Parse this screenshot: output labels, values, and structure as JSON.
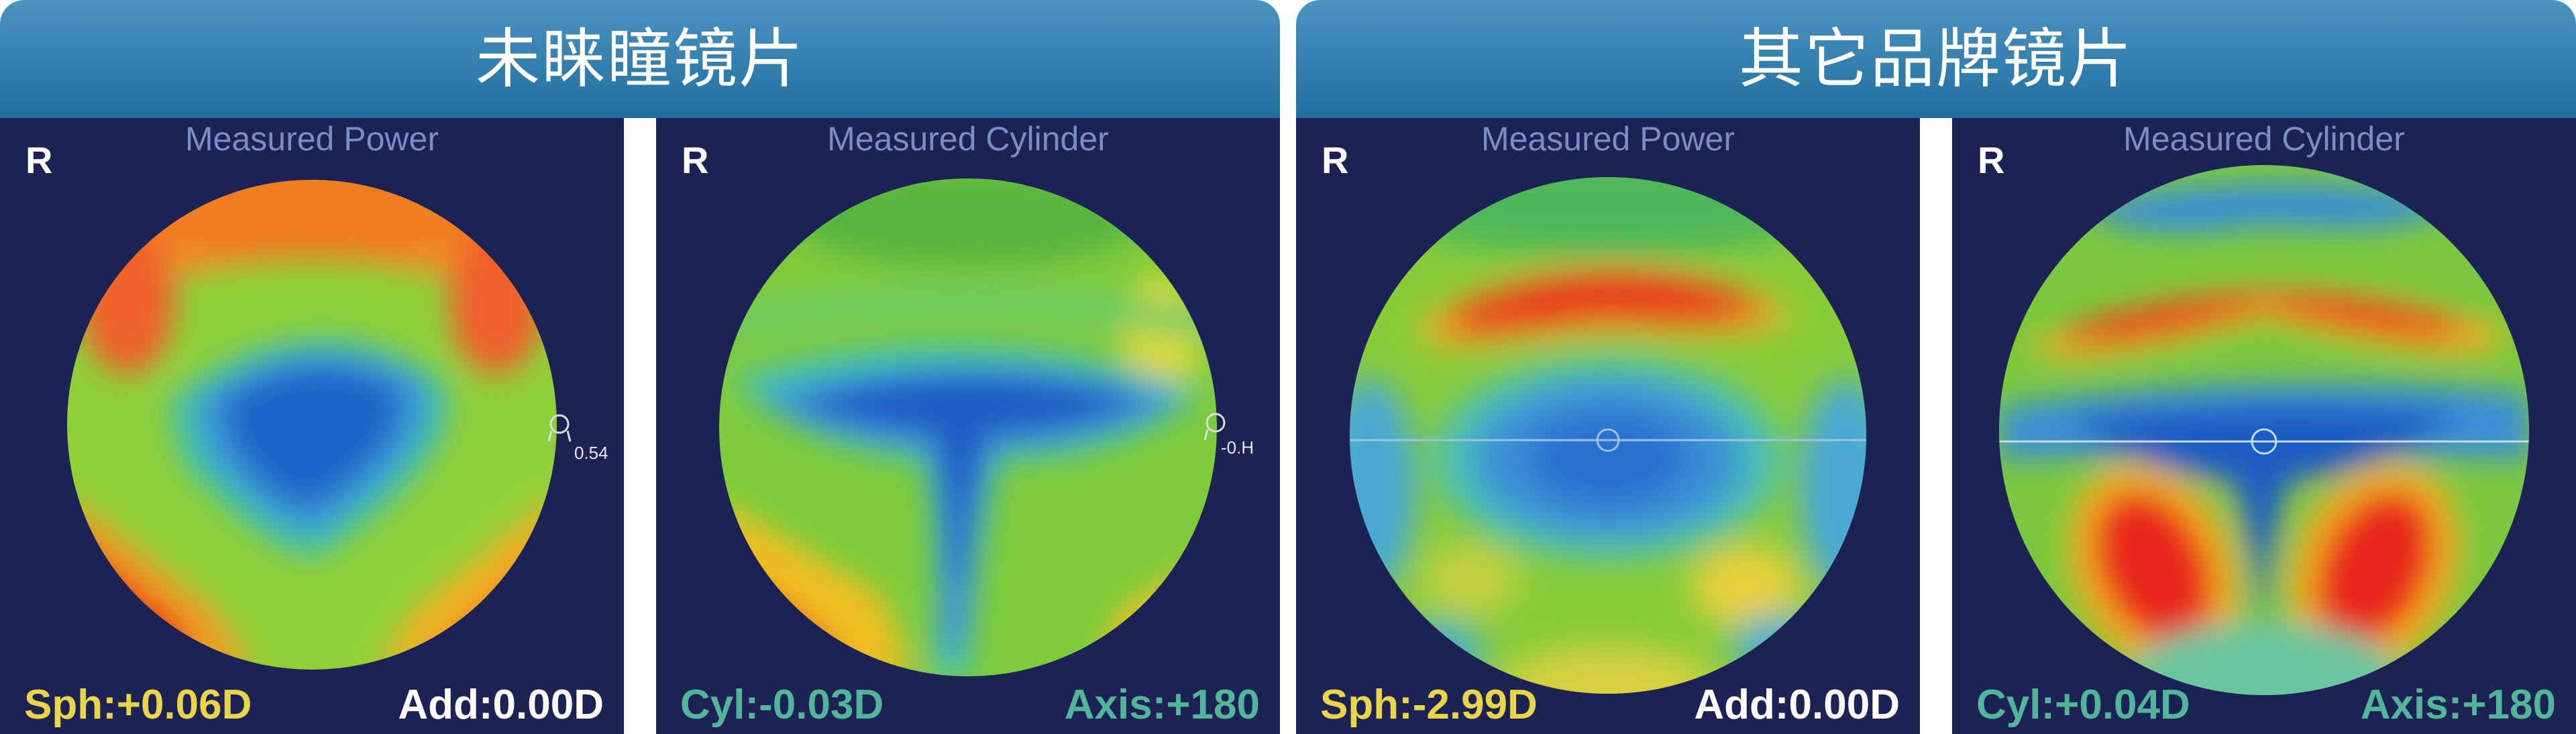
{
  "groups": [
    {
      "title": "未睐瞳镜片",
      "panels": [
        {
          "title": "Measured Power",
          "r_label": "R",
          "marker_value": "0.54",
          "left_text": "Sph:+0.06D",
          "right_text": "Add:0.00D"
        },
        {
          "title": "Measured Cylinder",
          "r_label": "R",
          "marker_value": "-0.H",
          "left_text": "Cyl:-0.03D",
          "right_text": "Axis:+180"
        }
      ]
    },
    {
      "title": "其它品牌镜片",
      "panels": [
        {
          "title": "Measured Power",
          "r_label": "R",
          "left_text": "Sph:-2.99D",
          "right_text": "Add:0.00D"
        },
        {
          "title": "Measured Cylinder",
          "r_label": "R",
          "left_text": "Cyl:+0.04D",
          "right_text": "Axis:+180"
        }
      ]
    }
  ],
  "colors": {
    "banner": "#2a7aab",
    "panel_bg": "#1c2354",
    "sph_text": "#e8d54a",
    "cyl_text": "#52b59a",
    "title_text": "#7d8cc5"
  }
}
